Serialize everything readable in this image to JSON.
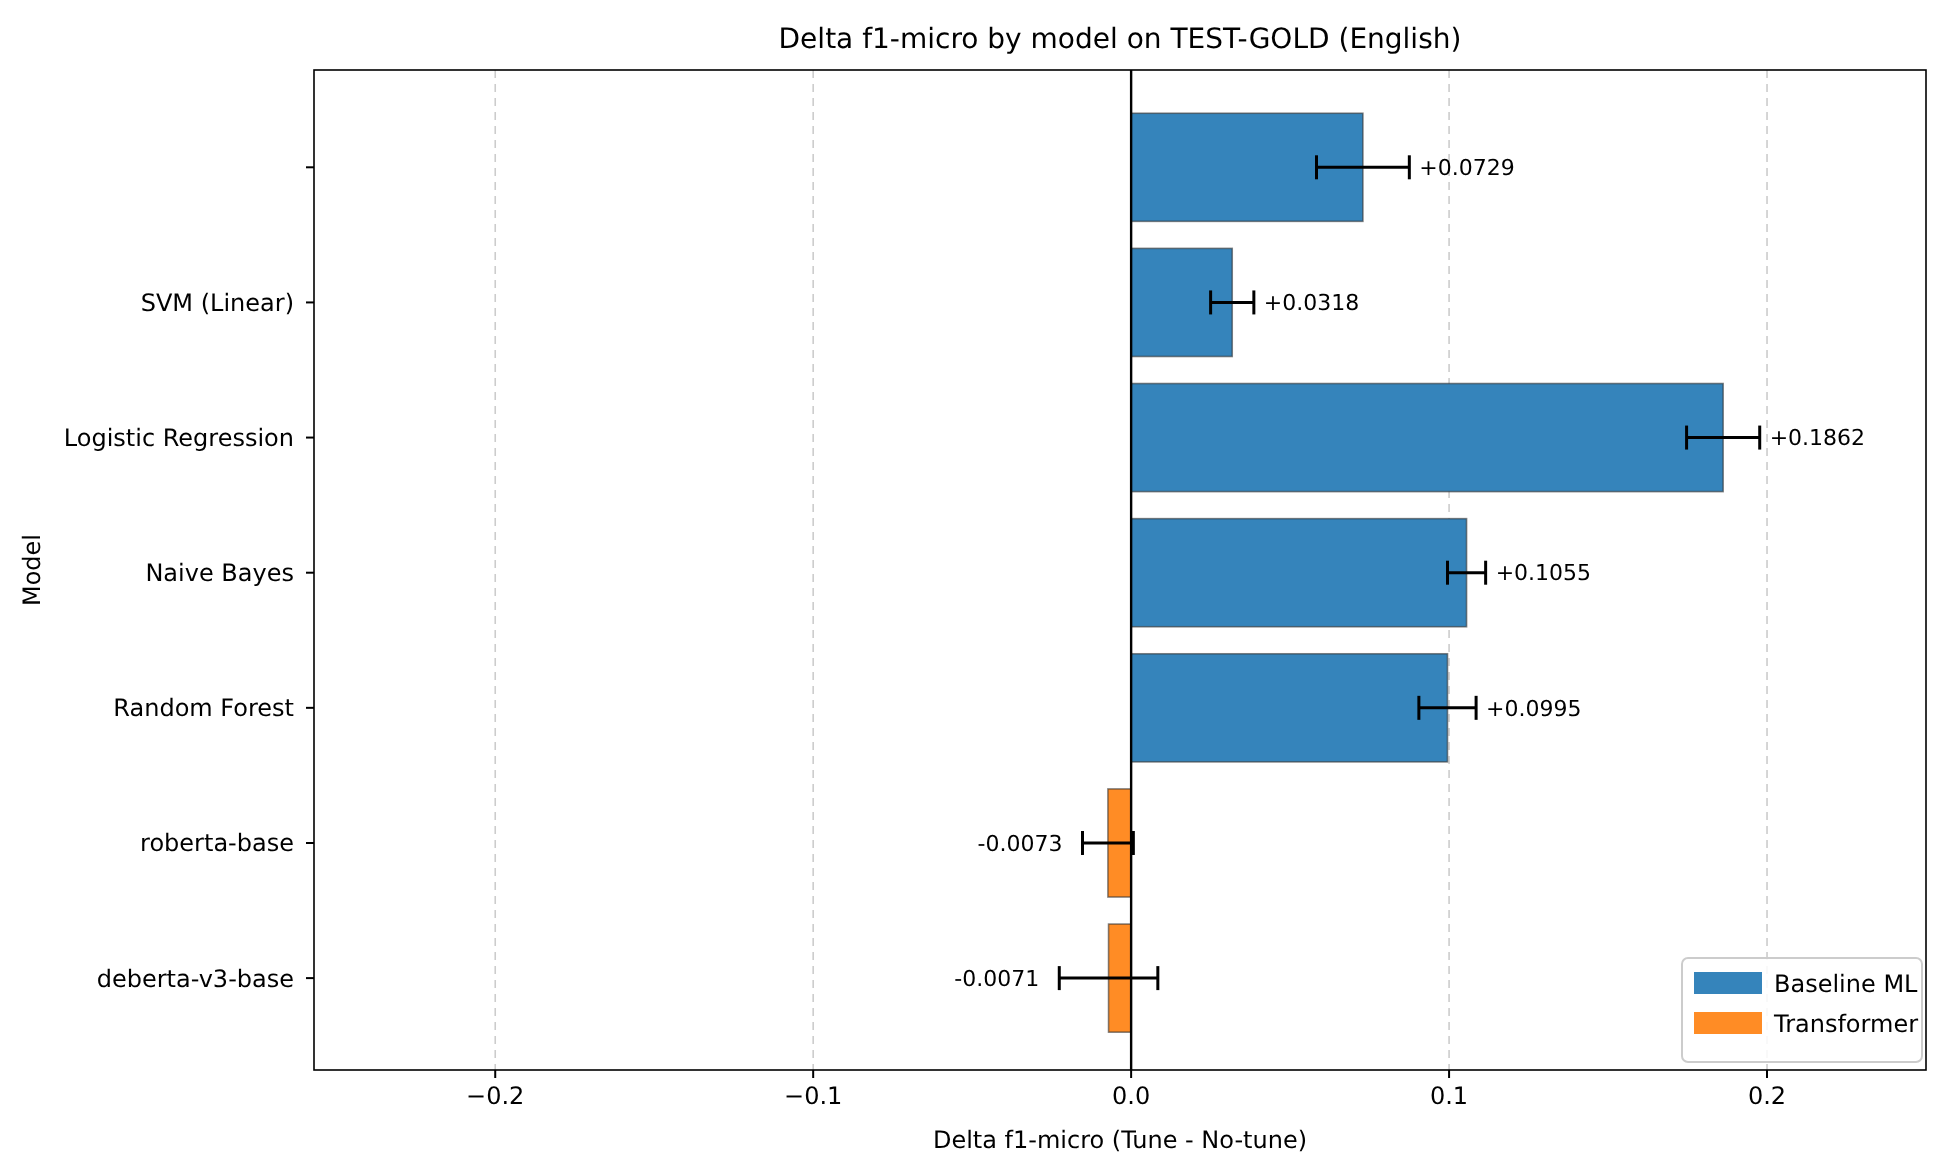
{
  "chart_data": {
    "type": "bar",
    "orientation": "horizontal",
    "title": "Delta f1-micro by model on TEST-GOLD (English)",
    "xlabel": "Delta f1-micro (Tune - No-tune)",
    "ylabel": "Model",
    "categories": [
      null,
      "SVM (Linear)",
      "Logistic Regression",
      "Naive Bayes",
      "Random Forest",
      "roberta-base",
      "deberta-v3-base"
    ],
    "series": [
      {
        "name": "Baseline ML",
        "color": "#3584bb",
        "values": [
          0.0729,
          0.0318,
          0.1862,
          0.1055,
          0.0995,
          null,
          null
        ],
        "errors": [
          0.0146,
          0.0068,
          0.0115,
          0.006,
          0.009,
          null,
          null
        ],
        "value_labels": [
          "+0.0729",
          "+0.0318",
          "+0.1862",
          "+0.1055",
          "+0.0995",
          null,
          null
        ]
      },
      {
        "name": "Transformer",
        "color": "#ff8c25",
        "values": [
          null,
          null,
          null,
          null,
          null,
          -0.0073,
          -0.0071
        ],
        "errors": [
          null,
          null,
          null,
          null,
          null,
          0.008,
          0.0155
        ],
        "value_labels": [
          null,
          null,
          null,
          null,
          null,
          "-0.0073",
          "-0.0071"
        ]
      }
    ],
    "xlim": [
      -0.257,
      0.25
    ],
    "xticks": [
      {
        "value": -0.2,
        "label": "−0.2"
      },
      {
        "value": -0.1,
        "label": "−0.1"
      },
      {
        "value": 0,
        "label": "0.0"
      },
      0.1,
      0.2
    ],
    "grid": "x",
    "legend": "bottom right",
    "ref_lines": [
      {
        "axis": "x",
        "value": 0,
        "color": "#000000"
      }
    ]
  }
}
